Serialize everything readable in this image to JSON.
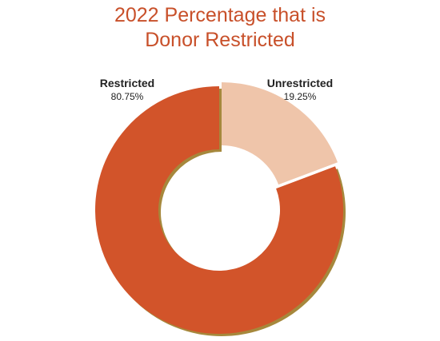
{
  "chart_data": {
    "type": "pie",
    "variant": "donut",
    "title": [
      "2022 Percentage that is",
      "Donor Restricted"
    ],
    "categories": [
      "Unrestricted",
      "Restricted"
    ],
    "values": [
      19.25,
      80.75
    ],
    "value_labels": [
      "19.25%",
      "80.75%"
    ],
    "colors": [
      "#efc5aa",
      "#d2542a"
    ],
    "legend": "none",
    "start": "top, clockwise"
  },
  "colors": {
    "title": "#c8502a",
    "shadow": "#9c7b27"
  }
}
